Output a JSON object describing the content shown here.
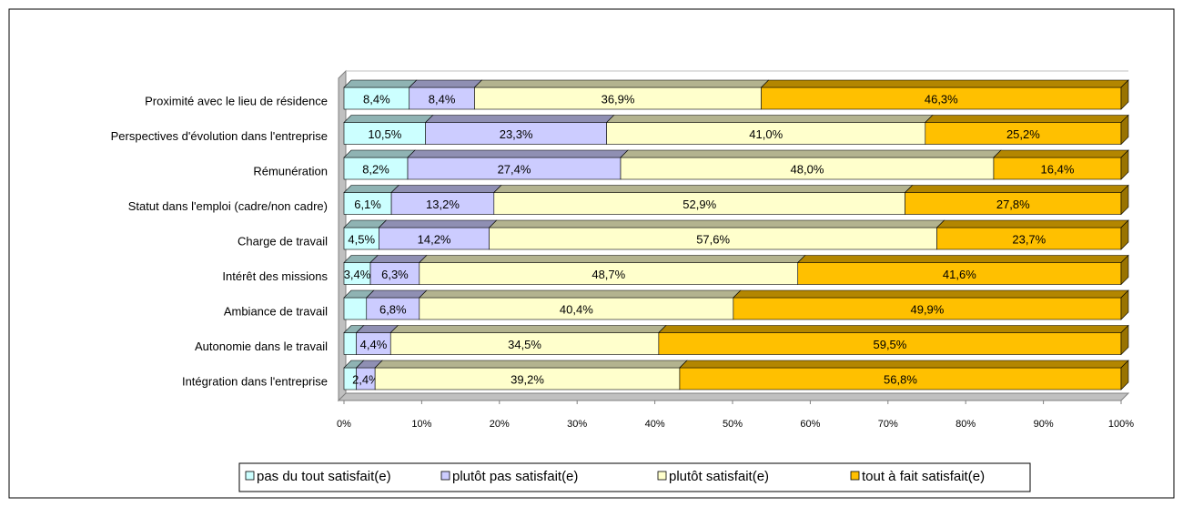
{
  "chart_data": {
    "type": "stacked_bar_3d_horizontal",
    "categories": [
      "Proximité avec le lieu de résidence",
      "Perspectives d'évolution dans l'entreprise",
      "Rémunération",
      "Statut dans l'emploi (cadre/non cadre)",
      "Charge de travail",
      "Intérêt des missions",
      "Ambiance de travail",
      "Autonomie dans le travail",
      "Intégration dans l'entreprise"
    ],
    "series": [
      {
        "name": "pas du tout satisfait(e)",
        "color": "#ccffff",
        "values": [
          8.4,
          10.5,
          8.2,
          6.1,
          4.5,
          3.4,
          2.9,
          1.6,
          1.6
        ],
        "value_labels": [
          "8,4%",
          "10,5%",
          "8,2%",
          "6,1%",
          "4,5%",
          "3,4%",
          null,
          null,
          null
        ]
      },
      {
        "name": "plutôt pas satisfait(e)",
        "color": "#ccccff",
        "values": [
          8.4,
          23.3,
          27.4,
          13.2,
          14.2,
          6.3,
          6.8,
          4.4,
          2.4
        ],
        "value_labels": [
          "8,4%",
          "23,3%",
          "27,4%",
          "13,2%",
          "14,2%",
          "6,3%",
          "6,8%",
          "4,4%",
          "2,4%"
        ]
      },
      {
        "name": "plutôt satisfait(e)",
        "color": "#ffffcc",
        "values": [
          36.9,
          41.0,
          48.0,
          52.9,
          57.6,
          48.7,
          40.4,
          34.5,
          39.2
        ],
        "value_labels": [
          "36,9%",
          "41,0%",
          "48,0%",
          "52,9%",
          "57,6%",
          "48,7%",
          "40,4%",
          "34,5%",
          "39,2%"
        ]
      },
      {
        "name": "tout à fait satisfait(e)",
        "color": "#ffc000",
        "values": [
          46.3,
          25.2,
          16.4,
          27.8,
          23.7,
          41.6,
          49.9,
          59.5,
          56.8
        ],
        "value_labels": [
          "46,3%",
          "25,2%",
          "16,4%",
          "27,8%",
          "23,7%",
          "41,6%",
          "49,9%",
          "59,5%",
          "56,8%"
        ]
      }
    ],
    "xlim": [
      0,
      100
    ],
    "xticks": [
      {
        "value": 0,
        "label": "0%"
      },
      {
        "value": 10,
        "label": "10%"
      },
      {
        "value": 20,
        "label": "20%"
      },
      {
        "value": 30,
        "label": "30%"
      },
      {
        "value": 40,
        "label": "40%"
      },
      {
        "value": 50,
        "label": "50%"
      },
      {
        "value": 60,
        "label": "60%"
      },
      {
        "value": 70,
        "label": "70%"
      },
      {
        "value": 80,
        "label": "80%"
      },
      {
        "value": 90,
        "label": "90%"
      },
      {
        "value": 100,
        "label": "100%"
      }
    ],
    "legend": "bottom"
  }
}
